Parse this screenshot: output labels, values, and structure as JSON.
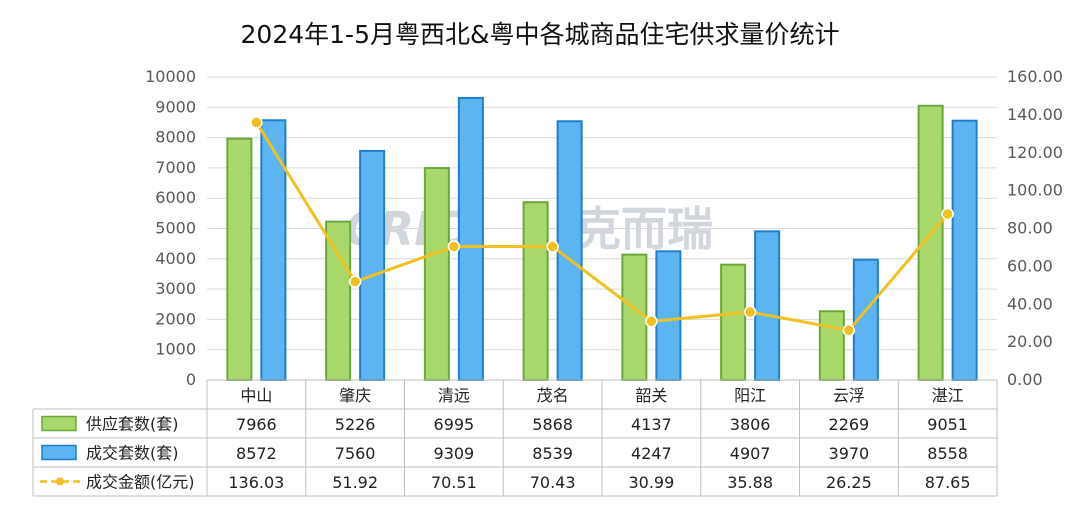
{
  "colors": {
    "supply": "#a8d86b",
    "supply_stroke": "#6aa83a",
    "deal": "#5cb4f2",
    "deal_stroke": "#1f7fcc",
    "amount_line": "#f0c020",
    "grid": "#d9d9d9"
  },
  "watermark": {
    "logo": "CRIC",
    "text": "克而瑞"
  },
  "chart_data": {
    "type": "bar",
    "title": "2024年1-5月粤西北&粤中各城商品住宅供求量价统计",
    "categories": [
      "中山",
      "肇庆",
      "清远",
      "茂名",
      "韶关",
      "阳江",
      "云浮",
      "湛江"
    ],
    "series": [
      {
        "name": "供应套数(套)",
        "type": "bar",
        "axis": "left",
        "values": [
          7966,
          5226,
          6995,
          5868,
          4137,
          3806,
          2269,
          9051
        ]
      },
      {
        "name": "成交套数(套)",
        "type": "bar",
        "axis": "left",
        "values": [
          8572,
          7560,
          9309,
          8539,
          4247,
          4907,
          3970,
          8558
        ]
      },
      {
        "name": "成交金额(亿元)",
        "type": "line",
        "axis": "right",
        "values": [
          136.03,
          51.92,
          70.51,
          70.43,
          30.99,
          35.88,
          26.25,
          87.65
        ]
      }
    ],
    "y_left": {
      "min": 0,
      "max": 10000,
      "step": 1000,
      "ticks": [
        "0",
        "1000",
        "2000",
        "3000",
        "4000",
        "5000",
        "6000",
        "7000",
        "8000",
        "9000",
        "10000"
      ]
    },
    "y_right": {
      "min": 0,
      "max": 160,
      "step": 20,
      "ticks": [
        "0.00",
        "20.00",
        "40.00",
        "60.00",
        "80.00",
        "100.00",
        "120.00",
        "140.00",
        "160.00"
      ]
    },
    "table": {
      "rows": [
        [
          "7966",
          "5226",
          "6995",
          "5868",
          "4137",
          "3806",
          "2269",
          "9051"
        ],
        [
          "8572",
          "7560",
          "9309",
          "8539",
          "4247",
          "4907",
          "3970",
          "8558"
        ],
        [
          "136.03",
          "51.92",
          "70.51",
          "70.43",
          "30.99",
          "35.88",
          "26.25",
          "87.65"
        ]
      ]
    },
    "grid": true,
    "legend": "data-table-left"
  }
}
